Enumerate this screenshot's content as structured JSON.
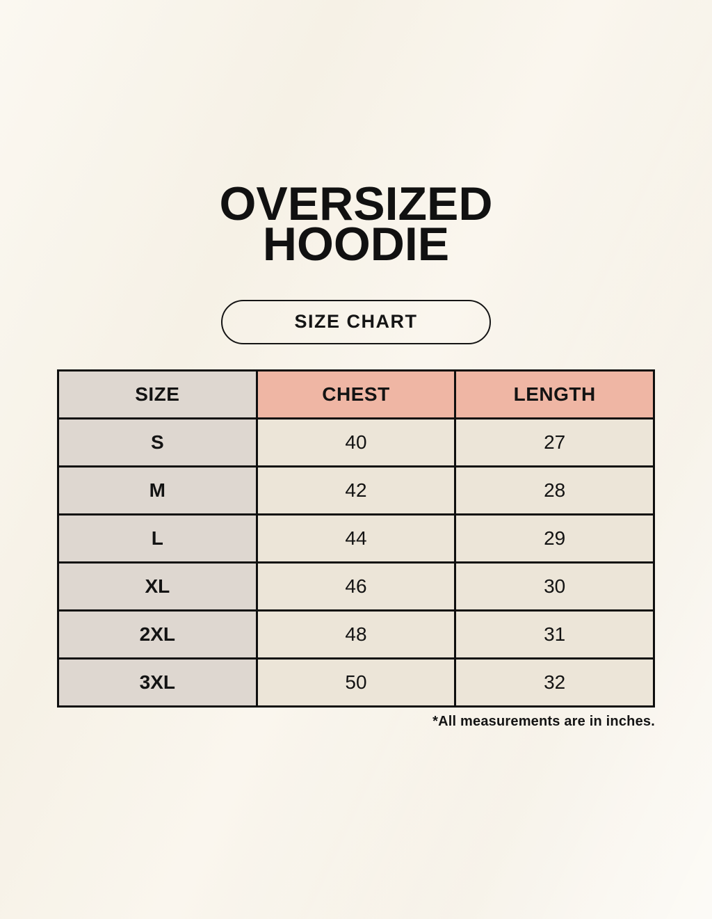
{
  "header": {
    "title_line1": "OVERSIZED",
    "title_line2": "HOODIE",
    "badge_label": "SIZE CHART"
  },
  "chart_data": {
    "type": "table",
    "title": "OVERSIZED HOODIE SIZE CHART",
    "columns": [
      "SIZE",
      "CHEST",
      "LENGTH"
    ],
    "rows": [
      [
        "S",
        "40",
        "27"
      ],
      [
        "M",
        "42",
        "28"
      ],
      [
        "L",
        "44",
        "29"
      ],
      [
        "XL",
        "46",
        "30"
      ],
      [
        "2XL",
        "48",
        "31"
      ],
      [
        "3XL",
        "50",
        "32"
      ]
    ],
    "units": "inches"
  },
  "footnote": "*All measurements are in inches.",
  "colors": {
    "background": "#f9f5ec",
    "size_column_bg": "#ded7d0",
    "header_accent_bg": "#efb6a4",
    "data_cell_bg": "#ece5d8",
    "border": "#0f0f0f",
    "text": "#131313"
  }
}
